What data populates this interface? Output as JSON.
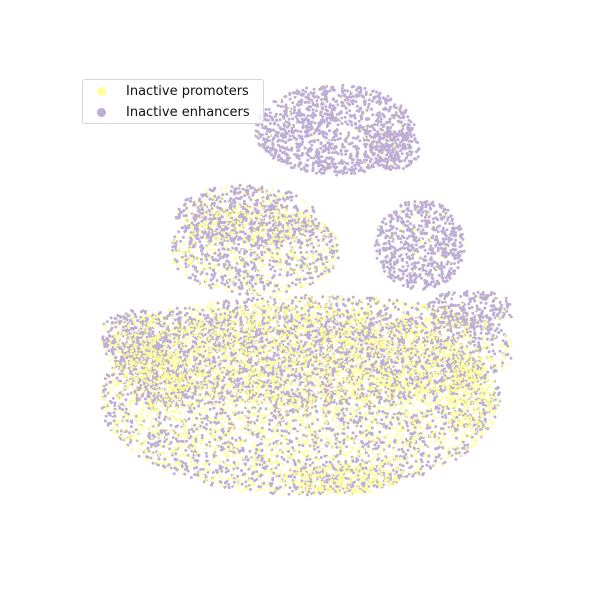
{
  "chart_data": {
    "type": "scatter",
    "title": "",
    "xlabel": "",
    "ylabel": "",
    "axes_visible": false,
    "grid": false,
    "legend_position": "top-left",
    "series": [
      {
        "name": "Inactive promoters",
        "color": "#ffff99"
      },
      {
        "name": "Inactive enhancers",
        "color": "#beaed4"
      }
    ]
  }
}
